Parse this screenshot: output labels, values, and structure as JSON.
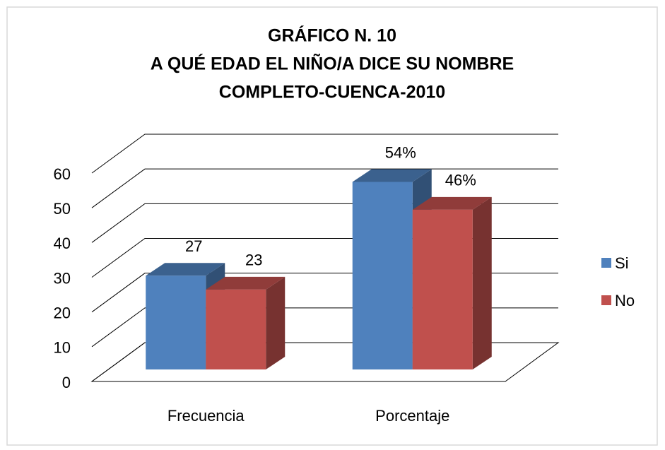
{
  "chart_data": {
    "type": "bar3d",
    "title": [
      "GRÁFICO N. 10",
      "A QUÉ EDAD EL NIÑO/A DICE SU NOMBRE",
      "COMPLETO-CUENCA-2010"
    ],
    "categories": [
      "Frecuencia",
      "Porcentaje"
    ],
    "series": [
      {
        "name": "Si",
        "color": "#4f81bd",
        "values": [
          27,
          54
        ],
        "value_labels": [
          "27",
          "54%"
        ]
      },
      {
        "name": "No",
        "color": "#c0504d",
        "values": [
          23,
          46
        ],
        "value_labels": [
          "23",
          "46%"
        ]
      }
    ],
    "ylim": [
      0,
      60
    ],
    "yticks": [
      0,
      10,
      20,
      30,
      40,
      50,
      60
    ],
    "grid": true,
    "legend": "right"
  }
}
